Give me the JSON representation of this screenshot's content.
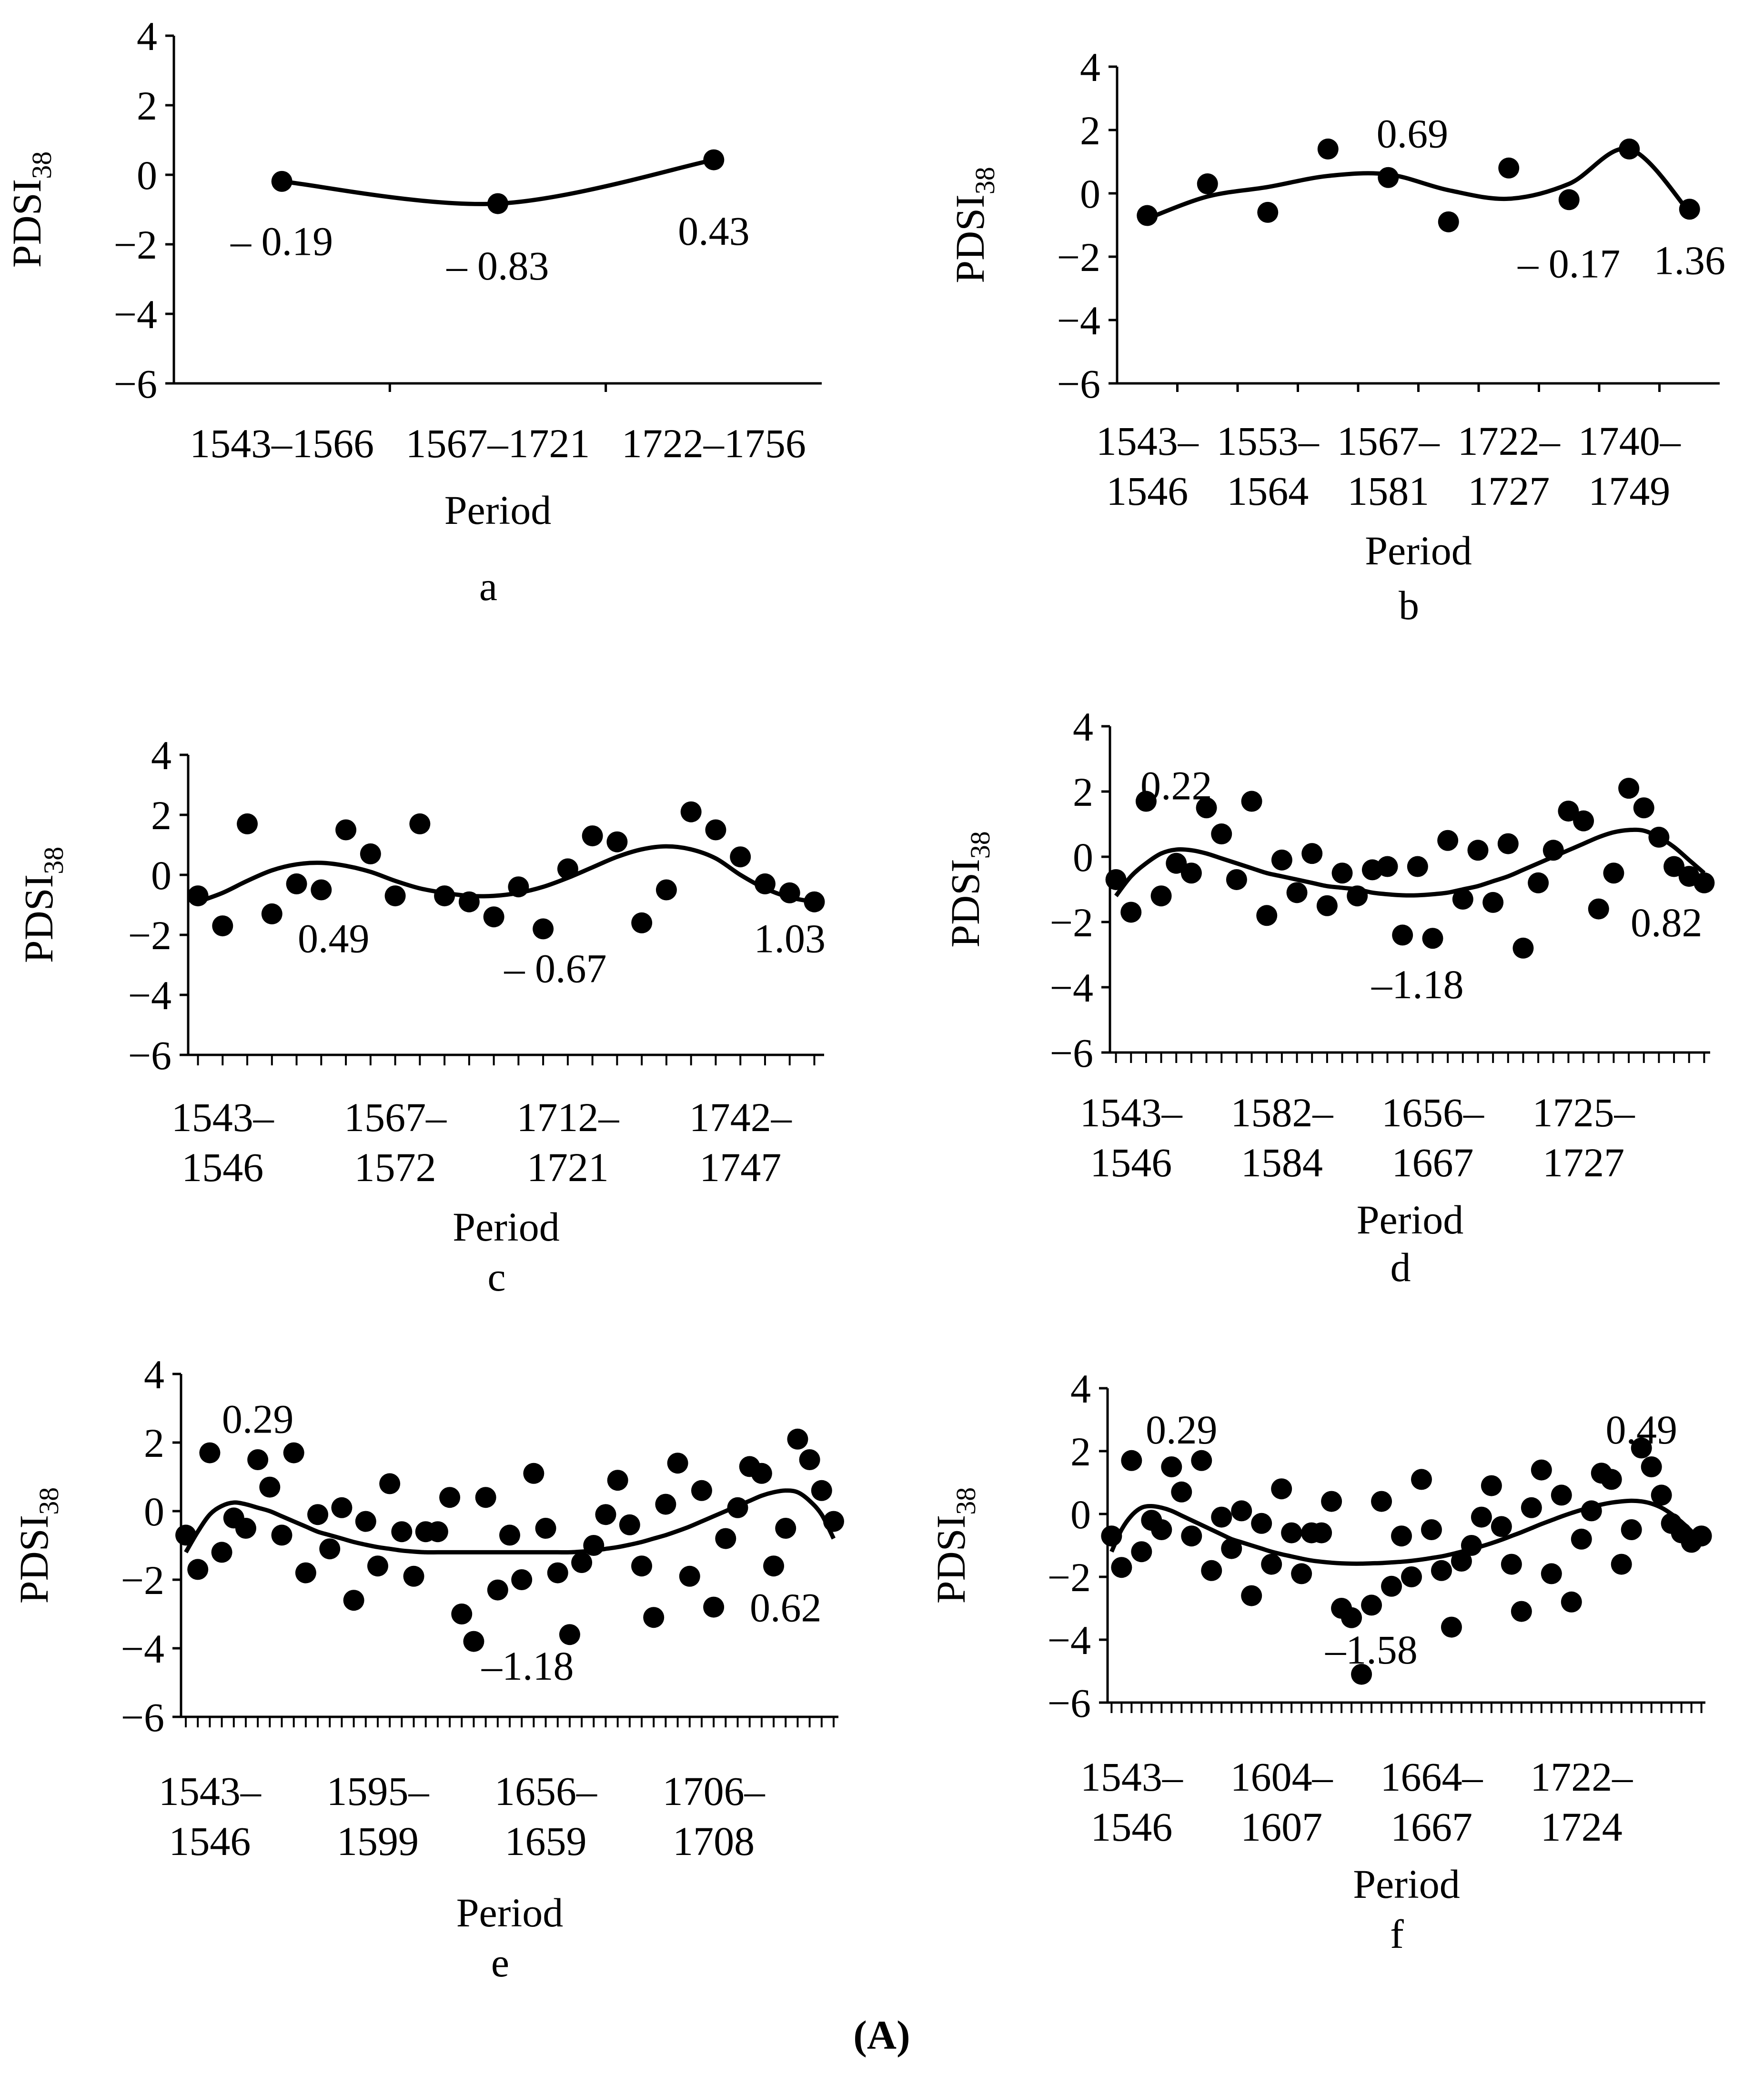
{
  "figure_caption": "(A)",
  "chart_data": [
    {
      "type": "scatter",
      "panel": "a",
      "xlabel": "Period",
      "ylabel": "PDSI",
      "ylabel_sub": "38",
      "ylim": [
        -6,
        4
      ],
      "yticks": [
        -6,
        -4,
        -2,
        0,
        2,
        4
      ],
      "n_points": 3,
      "category_labels": [
        {
          "i": 0,
          "lines": [
            "1543–1566"
          ]
        },
        {
          "i": 1,
          "lines": [
            "1567–1721"
          ]
        },
        {
          "i": 2,
          "lines": [
            "1722–1756"
          ]
        }
      ],
      "values": [
        -0.19,
        -0.83,
        0.43
      ],
      "trend": [
        -0.19,
        -0.83,
        0.43
      ],
      "annotations": [
        {
          "text": "– 0.19",
          "i": 0,
          "y": -1.9
        },
        {
          "text": "– 0.83",
          "i": 1,
          "y": -2.6
        },
        {
          "text": "0.43",
          "i": 2,
          "y": -1.6
        }
      ]
    },
    {
      "type": "scatter",
      "panel": "b",
      "xlabel": "Period",
      "ylabel": "PDSI",
      "ylabel_sub": "38",
      "ylim": [
        -6,
        4
      ],
      "yticks": [
        -6,
        -4,
        -2,
        0,
        2,
        4
      ],
      "n_points": 10,
      "category_labels": [
        {
          "i": 0,
          "lines": [
            "1543–",
            "1546"
          ]
        },
        {
          "i": 2,
          "lines": [
            "1553–",
            "1564"
          ]
        },
        {
          "i": 4,
          "lines": [
            "1567–",
            "1581"
          ]
        },
        {
          "i": 6,
          "lines": [
            "1722–",
            "1727"
          ]
        },
        {
          "i": 8,
          "lines": [
            "1740–",
            "1749"
          ]
        }
      ],
      "values": [
        -0.7,
        0.3,
        -0.6,
        1.4,
        0.5,
        -0.9,
        0.8,
        -0.2,
        1.4,
        -0.5
      ],
      "trend": [
        -0.8,
        -0.1,
        0.2,
        0.55,
        0.6,
        0.1,
        -0.17,
        0.3,
        1.4,
        -0.6
      ],
      "annotations": [
        {
          "text": "0.69",
          "i": 4.4,
          "y": 1.9
        },
        {
          "text": "– 0.17",
          "i": 7,
          "y": -2.2
        },
        {
          "text": "1.36",
          "i": 9,
          "y": -2.1
        }
      ]
    },
    {
      "type": "scatter",
      "panel": "c",
      "xlabel": "Period",
      "ylabel": "PDSI",
      "ylabel_sub": "38",
      "ylim": [
        -6,
        4
      ],
      "yticks": [
        -6,
        -4,
        -2,
        0,
        2,
        4
      ],
      "n_points": 26,
      "category_labels": [
        {
          "i": 1,
          "lines": [
            "1543–",
            "1546"
          ]
        },
        {
          "i": 8,
          "lines": [
            "1567–",
            "1572"
          ]
        },
        {
          "i": 15,
          "lines": [
            "1712–",
            "1721"
          ]
        },
        {
          "i": 22,
          "lines": [
            "1742–",
            "1747"
          ]
        }
      ],
      "values": [
        -0.7,
        -1.7,
        1.7,
        -1.3,
        -0.3,
        -0.5,
        1.5,
        0.7,
        -0.7,
        1.7,
        -0.7,
        -0.9,
        -1.4,
        -0.4,
        -1.8,
        0.2,
        1.3,
        1.1,
        -1.6,
        -0.5,
        2.1,
        1.5,
        0.6,
        -0.3,
        -0.6,
        -0.9
      ],
      "trend": [
        -0.9,
        -0.6,
        -0.2,
        0.15,
        0.35,
        0.4,
        0.3,
        0.1,
        -0.2,
        -0.45,
        -0.6,
        -0.7,
        -0.7,
        -0.6,
        -0.4,
        -0.1,
        0.25,
        0.6,
        0.85,
        0.95,
        0.85,
        0.55,
        0.0,
        -0.45,
        -0.75,
        -0.9
      ],
      "annotations": [
        {
          "text": "0.49",
          "i": 5.5,
          "y": -2.1
        },
        {
          "text": "– 0.67",
          "i": 14.5,
          "y": -3.1
        },
        {
          "text": "1.03",
          "i": 24,
          "y": -2.1
        }
      ]
    },
    {
      "type": "scatter",
      "panel": "d",
      "xlabel": "Period",
      "ylabel": "PDSI",
      "ylabel_sub": "38",
      "ylim": [
        -6,
        4
      ],
      "yticks": [
        -6,
        -4,
        -2,
        0,
        2,
        4
      ],
      "n_points": 40,
      "category_labels": [
        {
          "i": 1,
          "lines": [
            "1543–",
            "1546"
          ]
        },
        {
          "i": 11,
          "lines": [
            "1582–",
            "1584"
          ]
        },
        {
          "i": 21,
          "lines": [
            "1656–",
            "1667"
          ]
        },
        {
          "i": 31,
          "lines": [
            "1725–",
            "1727"
          ]
        }
      ],
      "values": [
        -0.7,
        -1.7,
        1.7,
        -1.2,
        -0.2,
        -0.5,
        1.5,
        0.7,
        -0.7,
        1.7,
        -1.8,
        -0.1,
        -1.1,
        0.1,
        -1.5,
        -0.5,
        -1.2,
        -0.4,
        -0.3,
        -2.4,
        -0.3,
        -2.5,
        0.5,
        -1.3,
        0.2,
        -1.4,
        0.4,
        -2.8,
        -0.8,
        0.2,
        1.4,
        1.1,
        -1.6,
        -0.5,
        2.1,
        1.5,
        0.6,
        -0.3,
        -0.6,
        -0.8
      ],
      "trend": [
        -1.2,
        -0.6,
        -0.2,
        0.1,
        0.22,
        0.2,
        0.1,
        -0.05,
        -0.2,
        -0.35,
        -0.5,
        -0.6,
        -0.7,
        -0.8,
        -0.9,
        -0.95,
        -1.0,
        -1.1,
        -1.15,
        -1.18,
        -1.18,
        -1.15,
        -1.1,
        -1.0,
        -0.9,
        -0.75,
        -0.6,
        -0.4,
        -0.2,
        0.0,
        0.2,
        0.4,
        0.6,
        0.75,
        0.82,
        0.8,
        0.6,
        0.3,
        -0.1,
        -0.5
      ],
      "annotations": [
        {
          "text": "0.22",
          "i": 4,
          "y": 2.2
        },
        {
          "text": "–1.18",
          "i": 20,
          "y": -3.9
        },
        {
          "text": "0.82",
          "i": 36.5,
          "y": -2.0
        }
      ]
    },
    {
      "type": "scatter",
      "panel": "e",
      "xlabel": "Period",
      "ylabel": "PDSI",
      "ylabel_sub": "38",
      "ylim": [
        -6,
        4
      ],
      "yticks": [
        -6,
        -4,
        -2,
        0,
        2,
        4
      ],
      "n_points": 55,
      "category_labels": [
        {
          "i": 2,
          "lines": [
            "1543–",
            "1546"
          ]
        },
        {
          "i": 16,
          "lines": [
            "1595–",
            "1599"
          ]
        },
        {
          "i": 30,
          "lines": [
            "1656–",
            "1659"
          ]
        },
        {
          "i": 44,
          "lines": [
            "1706–",
            "1708"
          ]
        }
      ],
      "values": [
        -0.7,
        -1.7,
        1.7,
        -1.2,
        -0.2,
        -0.5,
        1.5,
        0.7,
        -0.7,
        1.7,
        -1.8,
        -0.1,
        -1.1,
        0.1,
        -2.6,
        -0.3,
        -1.6,
        0.8,
        -0.6,
        -1.9,
        -0.6,
        -0.6,
        0.4,
        -3.0,
        -3.8,
        0.4,
        -2.3,
        -0.7,
        -2.0,
        1.1,
        -0.5,
        -1.8,
        -3.6,
        -1.5,
        -1.0,
        -0.1,
        0.9,
        -0.4,
        -1.6,
        -3.1,
        0.2,
        1.4,
        -1.9,
        0.6,
        -2.8,
        -0.8,
        0.1,
        1.3,
        1.1,
        -1.6,
        -0.5,
        2.1,
        1.5,
        0.6,
        -0.3
      ],
      "trend": [
        -1.2,
        -0.6,
        -0.1,
        0.15,
        0.25,
        0.2,
        0.1,
        0.0,
        -0.15,
        -0.3,
        -0.45,
        -0.6,
        -0.7,
        -0.8,
        -0.9,
        -0.98,
        -1.05,
        -1.1,
        -1.15,
        -1.18,
        -1.2,
        -1.2,
        -1.2,
        -1.2,
        -1.2,
        -1.2,
        -1.2,
        -1.2,
        -1.2,
        -1.2,
        -1.2,
        -1.2,
        -1.2,
        -1.18,
        -1.15,
        -1.1,
        -1.05,
        -0.98,
        -0.9,
        -0.8,
        -0.7,
        -0.58,
        -0.45,
        -0.3,
        -0.15,
        0.0,
        0.15,
        0.3,
        0.45,
        0.55,
        0.6,
        0.55,
        0.3,
        -0.1,
        -0.8
      ],
      "annotations": [
        {
          "text": "0.29",
          "i": 6,
          "y": 2.7
        },
        {
          "text": "–1.18",
          "i": 28.5,
          "y": -4.5
        },
        {
          "text": "0.62",
          "i": 50,
          "y": -2.8
        }
      ]
    },
    {
      "type": "scatter",
      "panel": "f",
      "xlabel": "Period",
      "ylabel": "PDSI",
      "ylabel_sub": "38",
      "ylim": [
        -6,
        4
      ],
      "yticks": [
        -6,
        -4,
        -2,
        0,
        2,
        4
      ],
      "n_points": 60,
      "category_labels": [
        {
          "i": 2,
          "lines": [
            "1543–",
            "1546"
          ]
        },
        {
          "i": 17,
          "lines": [
            "1604–",
            "1607"
          ]
        },
        {
          "i": 32,
          "lines": [
            "1664–",
            "1667"
          ]
        },
        {
          "i": 47,
          "lines": [
            "1722–",
            "1724"
          ]
        }
      ],
      "values": [
        -0.7,
        -1.7,
        1.7,
        -1.2,
        -0.2,
        -0.5,
        1.5,
        0.7,
        -0.7,
        1.7,
        -1.8,
        -0.1,
        -1.1,
        0.1,
        -2.6,
        -0.3,
        -1.6,
        0.8,
        -0.6,
        -1.9,
        -0.6,
        -0.6,
        0.4,
        -3.0,
        -3.3,
        -5.1,
        -2.9,
        0.4,
        -2.3,
        -0.7,
        -2.0,
        1.1,
        -0.5,
        -1.8,
        -3.6,
        -1.5,
        -1.0,
        -0.1,
        0.9,
        -0.4,
        -1.6,
        -3.1,
        0.2,
        1.4,
        -1.9,
        0.6,
        -2.8,
        -0.8,
        0.1,
        1.3,
        1.1,
        -1.6,
        -0.5,
        2.1,
        1.5,
        0.6,
        -0.3,
        -0.6,
        -0.9,
        -0.7
      ],
      "trend": [
        -1.2,
        -0.5,
        -0.05,
        0.2,
        0.25,
        0.2,
        0.1,
        -0.05,
        -0.2,
        -0.35,
        -0.5,
        -0.65,
        -0.8,
        -0.9,
        -1.0,
        -1.1,
        -1.2,
        -1.28,
        -1.35,
        -1.42,
        -1.48,
        -1.52,
        -1.55,
        -1.57,
        -1.58,
        -1.58,
        -1.57,
        -1.56,
        -1.54,
        -1.52,
        -1.49,
        -1.45,
        -1.4,
        -1.35,
        -1.28,
        -1.2,
        -1.12,
        -1.03,
        -0.93,
        -0.82,
        -0.7,
        -0.58,
        -0.45,
        -0.32,
        -0.2,
        -0.08,
        0.03,
        0.13,
        0.22,
        0.3,
        0.36,
        0.4,
        0.42,
        0.4,
        0.33,
        0.2,
        0.0,
        -0.25,
        -0.55,
        -0.9
      ],
      "annotations": [
        {
          "text": "0.29",
          "i": 7,
          "y": 2.7
        },
        {
          "text": "–1.58",
          "i": 26,
          "y": -4.3
        },
        {
          "text": "0.49",
          "i": 53,
          "y": 2.7
        }
      ]
    }
  ]
}
